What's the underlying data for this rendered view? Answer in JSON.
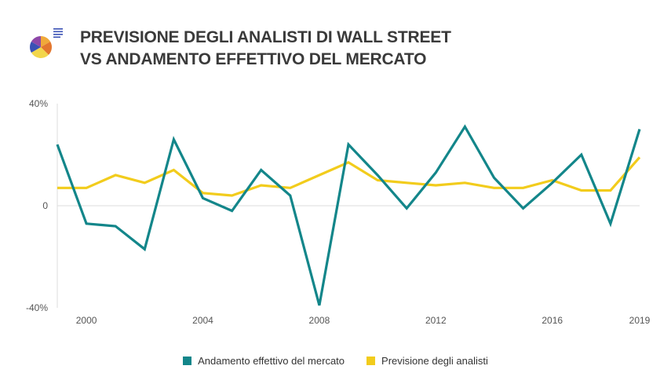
{
  "title": {
    "line1": "PREVISIONE DEGLI ANALISTI DI WALL STREET",
    "line2": "VS ANDAMENTO EFFETTIVO DEL MERCATO"
  },
  "logo": {
    "icon": "pie-chart-icon"
  },
  "colors": {
    "actual": "#13868a",
    "forecast": "#f2cc1c",
    "axis": "#dddddd"
  },
  "chart_data": {
    "type": "line",
    "x": [
      1999,
      2000,
      2001,
      2002,
      2003,
      2004,
      2005,
      2006,
      2007,
      2008,
      2009,
      2010,
      2011,
      2012,
      2013,
      2014,
      2015,
      2016,
      2017,
      2018,
      2019
    ],
    "series": [
      {
        "name": "Andamento effettivo del mercato",
        "values": [
          24,
          -7,
          -8,
          -17,
          26,
          3,
          -2,
          14,
          4,
          -39,
          24,
          12,
          -1,
          13,
          31,
          11,
          -1,
          9,
          20,
          -7,
          30
        ]
      },
      {
        "name": "Previsione degli analisti",
        "values": [
          7,
          7,
          12,
          9,
          14,
          5,
          4,
          8,
          7,
          12,
          17,
          10,
          9,
          8,
          9,
          7,
          7,
          10,
          6,
          6,
          19
        ]
      }
    ],
    "x_ticks": [
      {
        "value": 2000,
        "label": "2000"
      },
      {
        "value": 2004,
        "label": "2004"
      },
      {
        "value": 2008,
        "label": "2008"
      },
      {
        "value": 2012,
        "label": "2012"
      },
      {
        "value": 2016,
        "label": "2016"
      },
      {
        "value": 2019,
        "label": "2019"
      }
    ],
    "y_ticks": [
      {
        "value": 40,
        "label": "40%"
      },
      {
        "value": 0,
        "label": "0"
      },
      {
        "value": -40,
        "label": "-40%"
      }
    ],
    "xlim": [
      1999,
      2019
    ],
    "ylim": [
      -40,
      40
    ],
    "grid": false,
    "legend_position": "bottom"
  }
}
